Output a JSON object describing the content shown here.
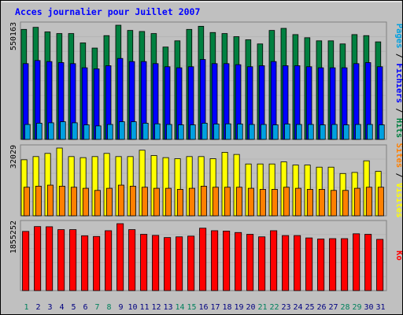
{
  "chart_data": {
    "type": "bar",
    "title": "Acces journalier pour Juillet 2007",
    "categories": [
      "1",
      "2",
      "3",
      "4",
      "5",
      "6",
      "7",
      "8",
      "9",
      "10",
      "11",
      "12",
      "13",
      "14",
      "15",
      "16",
      "17",
      "18",
      "19",
      "20",
      "21",
      "22",
      "23",
      "24",
      "25",
      "26",
      "27",
      "28",
      "29",
      "30",
      "31"
    ],
    "weekend_days": [
      "1",
      "7",
      "8",
      "14",
      "15",
      "21",
      "22",
      "28",
      "29"
    ],
    "panels": [
      {
        "name": "hits-files-pages",
        "ymax_label": "550163",
        "ymax": 550163,
        "side_label": {
          "parts": [
            {
              "text": "Pages",
              "color": "#00a0e0"
            },
            {
              "text": " / ",
              "color": "#000000"
            },
            {
              "text": "Fichiers",
              "color": "#0000ff"
            },
            {
              "text": " / ",
              "color": "#000000"
            },
            {
              "text": "Hits",
              "color": "#008040"
            }
          ]
        },
        "series": [
          {
            "name": "Hits",
            "color": "#008040",
            "values": [
              530000,
              540000,
              518000,
              510000,
              510000,
              465000,
              440000,
              500000,
              550163,
              525000,
              520000,
              510000,
              445000,
              475000,
              530000,
              545000,
              515000,
              510000,
              495000,
              480000,
              460000,
              525000,
              535000,
              505000,
              490000,
              475000,
              475000,
              460000,
              505000,
              500000,
              470000
            ]
          },
          {
            "name": "Fichiers",
            "color": "#0000ff",
            "values": [
              365000,
              380000,
              375000,
              370000,
              365000,
              345000,
              340000,
              355000,
              390000,
              375000,
              375000,
              365000,
              350000,
              345000,
              350000,
              385000,
              365000,
              365000,
              360000,
              350000,
              355000,
              375000,
              355000,
              355000,
              350000,
              345000,
              345000,
              345000,
              365000,
              370000,
              350000
            ]
          },
          {
            "name": "Pages",
            "color": "#00a0e0",
            "values": [
              72000,
              78000,
              80000,
              85000,
              80000,
              70000,
              65000,
              72000,
              85000,
              85000,
              78000,
              75000,
              72000,
              70000,
              70000,
              78000,
              74000,
              75000,
              74000,
              72000,
              72000,
              70000,
              74000,
              72000,
              72000,
              70000,
              72000,
              70000,
              72000,
              72000,
              70000
            ]
          }
        ]
      },
      {
        "name": "visits-sites",
        "ymax_label": "32029",
        "ymax": 32029,
        "side_label": {
          "parts": [
            {
              "text": "Sites",
              "color": "#ff8000"
            },
            {
              "text": " / ",
              "color": "#000000"
            },
            {
              "text": "Visites",
              "color": "#ffff00"
            }
          ]
        },
        "series": [
          {
            "name": "Visites",
            "color": "#ffff00",
            "values": [
              26500,
              28000,
              29500,
              32029,
              28000,
              27500,
              28000,
              29500,
              28000,
              28000,
              31000,
              28500,
              27500,
              27000,
              28000,
              28000,
              27000,
              30000,
              29000,
              24500,
              24500,
              24500,
              25500,
              24000,
              24000,
              23000,
              23000,
              20000,
              20500,
              26000,
              21000
            ]
          },
          {
            "name": "Sites",
            "color": "#ff8000",
            "values": [
              13500,
              14000,
              14500,
              14000,
              13500,
              13000,
              12000,
              13000,
              14500,
              14000,
              13500,
              13000,
              13000,
              12500,
              13000,
              14000,
              13500,
              13500,
              13500,
              13000,
              12500,
              12500,
              13500,
              13000,
              12500,
              12500,
              12000,
              12000,
              13000,
              13500,
              13500
            ]
          }
        ]
      },
      {
        "name": "kb",
        "ymax_label": "1855252",
        "ymax": 1855252,
        "side_label": {
          "parts": [
            {
              "text": "Ko",
              "color": "#ff0000"
            }
          ]
        },
        "series": [
          {
            "name": "Ko",
            "color": "#ff0000",
            "values": [
              1640000,
              1775000,
              1770000,
              1690000,
              1690000,
              1520000,
              1500000,
              1660000,
              1855252,
              1690000,
              1560000,
              1530000,
              1470000,
              1490000,
              1510000,
              1730000,
              1660000,
              1650000,
              1610000,
              1560000,
              1490000,
              1660000,
              1525000,
              1525000,
              1460000,
              1430000,
              1440000,
              1440000,
              1575000,
              1560000,
              1420000
            ]
          }
        ]
      }
    ]
  },
  "colors": {
    "background": "#c0c0c0",
    "title": "#0000ff",
    "weekday_label": "#000080",
    "weekend_label": "#00805c"
  }
}
